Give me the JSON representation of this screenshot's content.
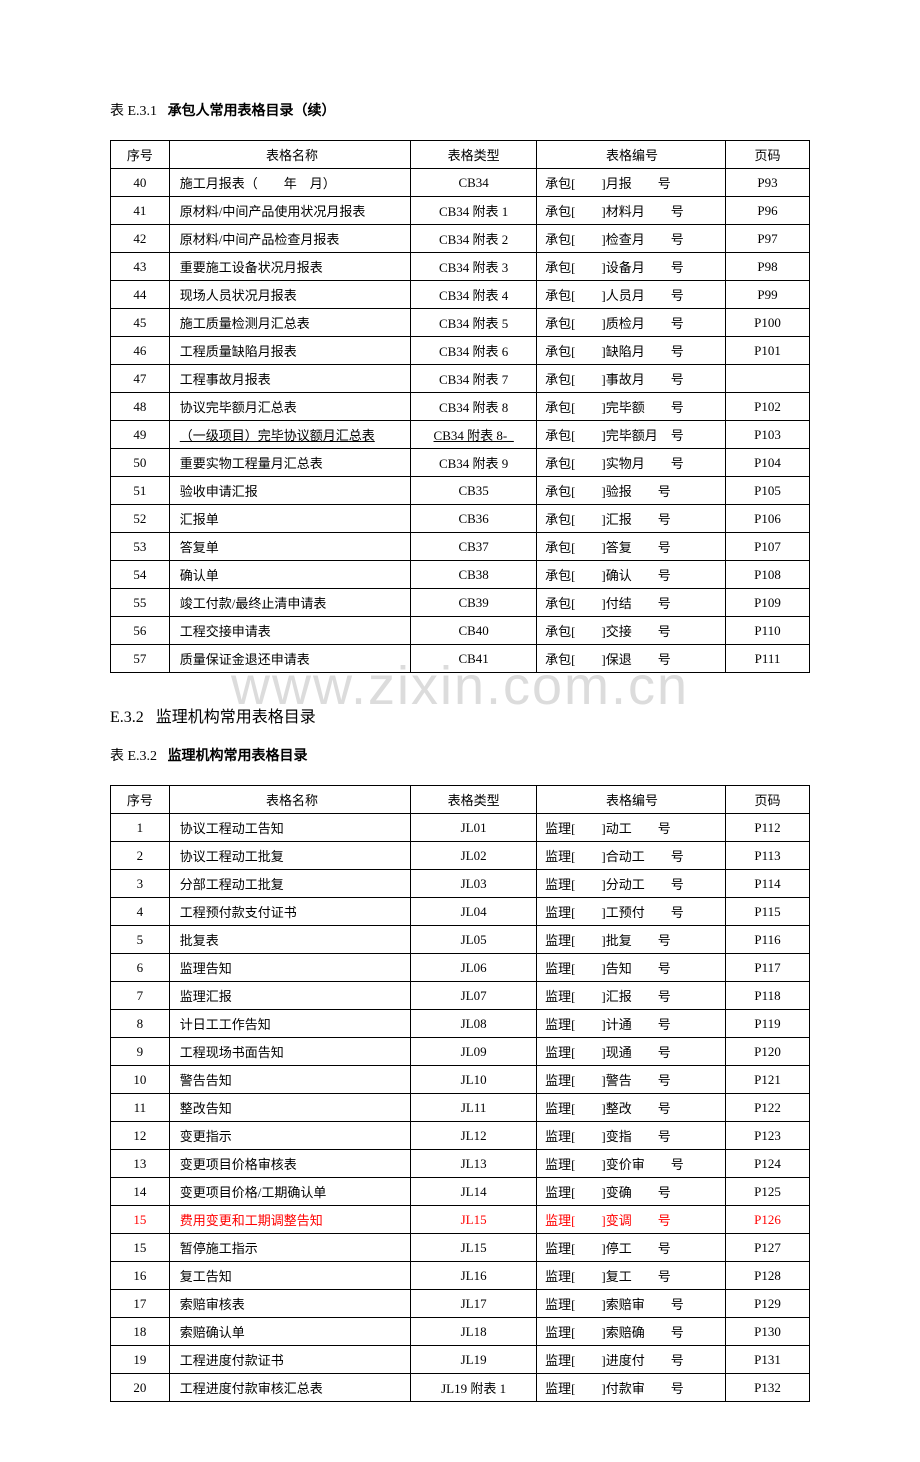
{
  "watermark": "www.zixin.com.cn",
  "title1": {
    "prefix": "表 E.3.1",
    "text": "承包人常用表格目录（续）"
  },
  "headers": {
    "seq": "序号",
    "name": "表格名称",
    "type": "表格类型",
    "code": "表格编号",
    "page": "页码"
  },
  "table1": [
    {
      "seq": "40",
      "name": "施工月报表（　　年　月）",
      "type": "CB34",
      "code": "承包[　　]月报　　号",
      "page": "P93"
    },
    {
      "seq": "41",
      "name": "原材料/中间产品使用状况月报表",
      "type": "CB34 附表 1",
      "code": "承包[　　]材料月　　号",
      "page": "P96"
    },
    {
      "seq": "42",
      "name": "原材料/中间产品检查月报表",
      "type": "CB34 附表 2",
      "code": "承包[　　]检查月　　号",
      "page": "P97"
    },
    {
      "seq": "43",
      "name": "重要施工设备状况月报表",
      "type": "CB34 附表 3",
      "code": "承包[　　]设备月　　号",
      "page": "P98"
    },
    {
      "seq": "44",
      "name": "现场人员状况月报表",
      "type": "CB34 附表 4",
      "code": "承包[　　]人员月　　号",
      "page": "P99"
    },
    {
      "seq": "45",
      "name": "施工质量检测月汇总表",
      "type": "CB34 附表 5",
      "code": "承包[　　]质检月　　号",
      "page": "P100"
    },
    {
      "seq": "46",
      "name": "工程质量缺陷月报表",
      "type": "CB34 附表 6",
      "code": "承包[　　]缺陷月　　号",
      "page": "P101"
    },
    {
      "seq": "47",
      "name": "工程事故月报表",
      "type": "CB34 附表 7",
      "code": "承包[　　]事故月　　号",
      "page": ""
    },
    {
      "seq": "48",
      "name": "协议完毕额月汇总表",
      "type": "CB34 附表 8",
      "code": "承包[　　]完毕额　　号",
      "page": "P102"
    },
    {
      "seq": "49",
      "name": "（一级项目）完毕协议额月汇总表",
      "type": "CB34 附表 8-_",
      "code": "承包[　　]完毕额月　号",
      "page": "P103",
      "underline": true
    },
    {
      "seq": "50",
      "name": "重要实物工程量月汇总表",
      "type": "CB34 附表 9",
      "code": "承包[　　]实物月　　号",
      "page": "P104"
    },
    {
      "seq": "51",
      "name": "验收申请汇报",
      "type": "CB35",
      "code": "承包[　　]验报　　号",
      "page": "P105"
    },
    {
      "seq": "52",
      "name": "汇报单",
      "type": "CB36",
      "code": "承包[　　]汇报　　号",
      "page": "P106"
    },
    {
      "seq": "53",
      "name": "答复单",
      "type": "CB37",
      "code": "承包[　　]答复　　号",
      "page": "P107"
    },
    {
      "seq": "54",
      "name": "确认单",
      "type": "CB38",
      "code": "承包[　　]确认　　号",
      "page": "P108"
    },
    {
      "seq": "55",
      "name": "竣工付款/最终止清申请表",
      "type": "CB39",
      "code": "承包[　　]付结　　号",
      "page": "P109"
    },
    {
      "seq": "56",
      "name": "工程交接申请表",
      "type": "CB40",
      "code": "承包[　　]交接　　号",
      "page": "P110"
    },
    {
      "seq": "57",
      "name": "质量保证金退还申请表",
      "type": "CB41",
      "code": "承包[　　]保退　　号",
      "page": "P111"
    }
  ],
  "section2": {
    "num": "E.3.2",
    "text": "监理机构常用表格目录"
  },
  "title2": {
    "prefix": "表 E.3.2",
    "text": "监理机构常用表格目录"
  },
  "table2": [
    {
      "seq": "1",
      "name": "协议工程动工告知",
      "type": "JL01",
      "code": "监理[　　]动工　　号",
      "page": "P112"
    },
    {
      "seq": "2",
      "name": "协议工程动工批复",
      "type": "JL02",
      "code": "监理[　　]合动工　　号",
      "page": "P113"
    },
    {
      "seq": "3",
      "name": "分部工程动工批复",
      "type": "JL03",
      "code": "监理[　　]分动工　　号",
      "page": "P114"
    },
    {
      "seq": "4",
      "name": "工程预付款支付证书",
      "type": "JL04",
      "code": "监理[　　]工预付　　号",
      "page": "P115"
    },
    {
      "seq": "5",
      "name": "批复表",
      "type": "JL05",
      "code": "监理[　　]批复　　号",
      "page": "P116"
    },
    {
      "seq": "6",
      "name": "监理告知",
      "type": "JL06",
      "code": "监理[　　]告知　　号",
      "page": "P117"
    },
    {
      "seq": "7",
      "name": "监理汇报",
      "type": "JL07",
      "code": "监理[　　]汇报　　号",
      "page": "P118"
    },
    {
      "seq": "8",
      "name": "计日工工作告知",
      "type": "JL08",
      "code": "监理[　　]计通　　号",
      "page": "P119"
    },
    {
      "seq": "9",
      "name": "工程现场书面告知",
      "type": "JL09",
      "code": "监理[　　]现通　　号",
      "page": "P120"
    },
    {
      "seq": "10",
      "name": "警告告知",
      "type": "JL10",
      "code": "监理[　　]警告　　号",
      "page": "P121"
    },
    {
      "seq": "11",
      "name": "整改告知",
      "type": "JL11",
      "code": "监理[　　]整改　　号",
      "page": "P122"
    },
    {
      "seq": "12",
      "name": "变更指示",
      "type": "JL12",
      "code": "监理[　　]变指　　号",
      "page": "P123"
    },
    {
      "seq": "13",
      "name": "变更项目价格审核表",
      "type": "JL13",
      "code": "监理[　　]变价审　　号",
      "page": "P124"
    },
    {
      "seq": "14",
      "name": "变更项目价格/工期确认单",
      "type": "JL14",
      "code": "监理[　　]变确　　号",
      "page": "P125"
    },
    {
      "seq": "15",
      "name": "费用变更和工期调整告知",
      "type": "JL15",
      "code": "监理[　　]变调　　号",
      "page": "P126",
      "red": true
    },
    {
      "seq": "15",
      "name": "暂停施工指示",
      "type": "JL15",
      "code": "监理[　　]停工　　号",
      "page": "P127"
    },
    {
      "seq": "16",
      "name": "复工告知",
      "type": "JL16",
      "code": "监理[　　]复工　　号",
      "page": "P128"
    },
    {
      "seq": "17",
      "name": "索赔审核表",
      "type": "JL17",
      "code": "监理[　　]索赔审　　号",
      "page": "P129"
    },
    {
      "seq": "18",
      "name": "索赔确认单",
      "type": "JL18",
      "code": "监理[　　]索赔确　　号",
      "page": "P130"
    },
    {
      "seq": "19",
      "name": "工程进度付款证书",
      "type": "JL19",
      "code": "监理[　　]进度付　　号",
      "page": "P131"
    },
    {
      "seq": "20",
      "name": "工程进度付款审核汇总表",
      "type": "JL19 附表 1",
      "code": "监理[　　]付款审　　号",
      "page": "P132"
    }
  ]
}
